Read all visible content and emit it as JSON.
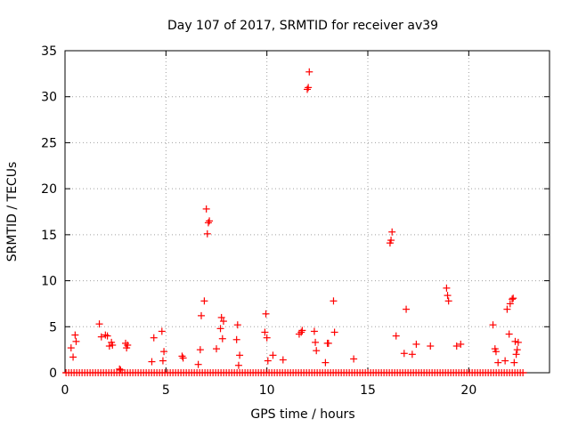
{
  "chart_data": {
    "type": "scatter",
    "title": "Day 107 of 2017, SRMTID for receiver av39",
    "xlabel": "GPS time / hours",
    "ylabel": "SRMTID / TECUs",
    "xlim": [
      0,
      24
    ],
    "ylim": [
      0,
      35
    ],
    "xticks": [
      0,
      5,
      10,
      15,
      20
    ],
    "yticks": [
      0,
      5,
      10,
      15,
      20,
      25,
      30,
      35
    ],
    "grid": true,
    "marker": "plus",
    "color": "#ff0000",
    "series": [
      {
        "name": "SRMTID",
        "x": [
          0.3,
          0.4,
          0.5,
          0.55,
          1.7,
          1.8,
          2.0,
          2.1,
          2.2,
          2.3,
          2.35,
          2.7,
          2.75,
          3.0,
          3.05,
          3.1,
          4.3,
          4.4,
          4.8,
          4.85,
          4.9,
          5.8,
          5.85,
          6.6,
          6.7,
          6.75,
          6.9,
          7.0,
          7.05,
          7.1,
          7.15,
          7.5,
          7.7,
          7.75,
          7.8,
          7.85,
          8.5,
          8.55,
          8.6,
          8.65,
          9.9,
          9.95,
          10.0,
          10.05,
          10.3,
          10.8,
          11.6,
          11.7,
          11.75,
          12.0,
          12.05,
          12.1,
          12.35,
          12.4,
          12.45,
          12.9,
          13.0,
          13.05,
          13.3,
          13.35,
          14.3,
          16.1,
          16.15,
          16.2,
          16.4,
          16.8,
          16.9,
          17.2,
          17.4,
          18.1,
          18.9,
          18.95,
          19.0,
          19.4,
          19.6,
          21.2,
          21.3,
          21.35,
          21.45,
          21.8,
          21.9,
          22.0,
          22.05,
          22.15,
          22.2,
          22.25,
          22.3,
          22.35,
          22.4,
          22.45
        ],
        "y": [
          2.7,
          1.7,
          4.1,
          3.4,
          5.3,
          3.9,
          4.1,
          4.0,
          2.9,
          3.3,
          3.0,
          0.4,
          0.3,
          3.2,
          2.7,
          3.0,
          1.2,
          3.8,
          4.5,
          1.3,
          2.3,
          1.8,
          1.6,
          0.9,
          2.5,
          6.2,
          7.8,
          17.8,
          15.1,
          16.3,
          16.5,
          2.6,
          4.8,
          6.0,
          3.7,
          5.6,
          3.6,
          5.2,
          0.8,
          1.9,
          4.4,
          6.4,
          3.8,
          1.3,
          1.9,
          1.4,
          4.2,
          4.4,
          4.6,
          30.8,
          31.0,
          32.7,
          4.5,
          3.3,
          2.4,
          1.1,
          3.2,
          3.2,
          7.8,
          4.4,
          1.5,
          14.1,
          14.4,
          15.3,
          4.0,
          2.1,
          6.9,
          2.0,
          3.1,
          2.9,
          9.2,
          8.4,
          7.8,
          2.9,
          3.1,
          5.2,
          2.6,
          2.3,
          1.1,
          1.3,
          6.9,
          4.2,
          7.5,
          8.0,
          8.1,
          1.1,
          3.4,
          2.0,
          2.5,
          3.3
        ]
      }
    ],
    "baseline": {
      "y": 0,
      "x_start": 0.05,
      "x_end": 22.7,
      "note": "dense band of near-zero values"
    }
  }
}
